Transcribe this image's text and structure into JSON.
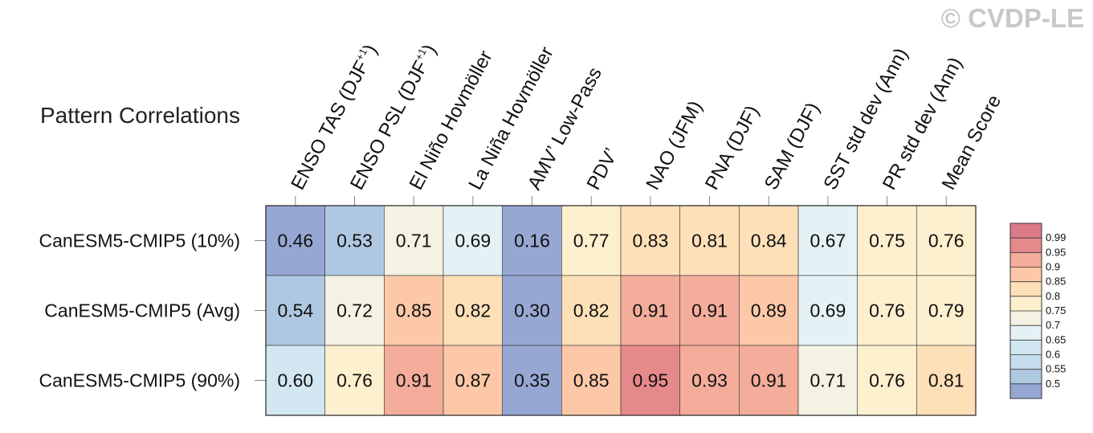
{
  "watermark": "© CVDP-LE",
  "chart_data": {
    "type": "heatmap",
    "title": "Pattern Correlations",
    "columns": [
      {
        "label": "ENSO TAS (DJF",
        "sup": "+1",
        "suffix": ")"
      },
      {
        "label": "ENSO PSL (DJF",
        "sup": "+1",
        "suffix": ")"
      },
      {
        "label": "El Niño Hovmöller",
        "sup": "",
        "suffix": ""
      },
      {
        "label": "La Niña Hovmöller",
        "sup": "",
        "suffix": ""
      },
      {
        "label": "AMV’ Low-Pass",
        "sup": "",
        "suffix": ""
      },
      {
        "label": "PDV’",
        "sup": "",
        "suffix": ""
      },
      {
        "label": "NAO (JFM)",
        "sup": "",
        "suffix": ""
      },
      {
        "label": "PNA (DJF)",
        "sup": "",
        "suffix": ""
      },
      {
        "label": "SAM (DJF)",
        "sup": "",
        "suffix": ""
      },
      {
        "label": "SST std dev (Ann)",
        "sup": "",
        "suffix": ""
      },
      {
        "label": "PR std dev (Ann)",
        "sup": "",
        "suffix": ""
      },
      {
        "label": "Mean Score",
        "sup": "",
        "suffix": ""
      }
    ],
    "rows": [
      "CanESM5-CMIP5 (10%)",
      "CanESM5-CMIP5 (Avg)",
      "CanESM5-CMIP5 (90%)"
    ],
    "values": [
      [
        0.46,
        0.53,
        0.71,
        0.69,
        0.16,
        0.77,
        0.83,
        0.81,
        0.84,
        0.67,
        0.75,
        0.76
      ],
      [
        0.54,
        0.72,
        0.85,
        0.82,
        0.3,
        0.82,
        0.91,
        0.91,
        0.89,
        0.69,
        0.76,
        0.79
      ],
      [
        0.6,
        0.76,
        0.91,
        0.87,
        0.35,
        0.85,
        0.95,
        0.93,
        0.91,
        0.71,
        0.76,
        0.81
      ]
    ],
    "value_labels": [
      [
        "0.46",
        "0.53",
        "0.71",
        "0.69",
        "0.16",
        "0.77",
        "0.83",
        "0.81",
        "0.84",
        "0.67",
        "0.75",
        "0.76"
      ],
      [
        "0.54",
        "0.72",
        "0.85",
        "0.82",
        "0.30",
        "0.82",
        "0.91",
        "0.91",
        "0.89",
        "0.69",
        "0.76",
        "0.79"
      ],
      [
        "0.60",
        "0.76",
        "0.91",
        "0.87",
        "0.35",
        "0.85",
        "0.95",
        "0.93",
        "0.91",
        "0.71",
        "0.76",
        "0.81"
      ]
    ],
    "colorbar": {
      "ticks": [
        "0.99",
        "0.95",
        "0.9",
        "0.85",
        "0.8",
        "0.75",
        "0.7",
        "0.65",
        "0.6",
        "0.55",
        "0.5"
      ],
      "bins": [
        {
          "min": 0.99,
          "max": 1.0,
          "color": "#db7b8a"
        },
        {
          "min": 0.95,
          "max": 0.99,
          "color": "#e6898a"
        },
        {
          "min": 0.9,
          "max": 0.95,
          "color": "#f3ad9a"
        },
        {
          "min": 0.85,
          "max": 0.9,
          "color": "#fcc8a7"
        },
        {
          "min": 0.8,
          "max": 0.85,
          "color": "#fde0b8"
        },
        {
          "min": 0.75,
          "max": 0.8,
          "color": "#fdf0cf"
        },
        {
          "min": 0.7,
          "max": 0.75,
          "color": "#f3f2e3"
        },
        {
          "min": 0.65,
          "max": 0.7,
          "color": "#e4f1f5"
        },
        {
          "min": 0.6,
          "max": 0.65,
          "color": "#d2e7f1"
        },
        {
          "min": 0.55,
          "max": 0.6,
          "color": "#c5dced"
        },
        {
          "min": 0.5,
          "max": 0.55,
          "color": "#afc8e2"
        },
        {
          "min": -1.0,
          "max": 0.5,
          "color": "#97a7d3"
        }
      ]
    },
    "grid": true,
    "legend_position": "right"
  }
}
